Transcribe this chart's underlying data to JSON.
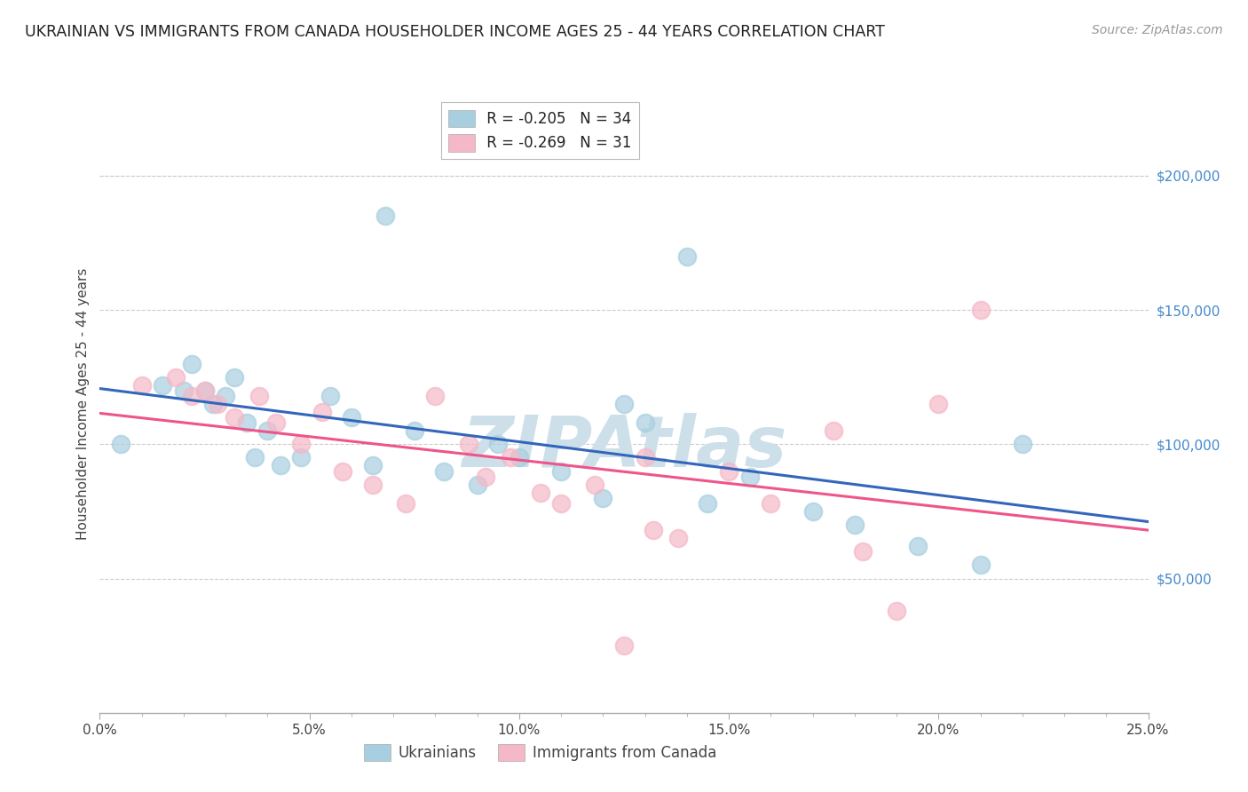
{
  "title": "UKRAINIAN VS IMMIGRANTS FROM CANADA HOUSEHOLDER INCOME AGES 25 - 44 YEARS CORRELATION CHART",
  "source": "Source: ZipAtlas.com",
  "ylabel": "Householder Income Ages 25 - 44 years",
  "xlim": [
    0.0,
    0.25
  ],
  "ylim": [
    0,
    230000
  ],
  "xtick_vals": [
    0.0,
    0.05,
    0.1,
    0.15,
    0.2,
    0.25
  ],
  "xtick_labels": [
    "0.0%",
    "5.0%",
    "10.0%",
    "15.0%",
    "20.0%",
    "25.0%"
  ],
  "yticks_right": [
    50000,
    100000,
    150000,
    200000
  ],
  "ytick_labels_right": [
    "$50,000",
    "$100,000",
    "$150,000",
    "$200,000"
  ],
  "legend_blue_R": "R = -0.205",
  "legend_blue_N": "N = 34",
  "legend_pink_R": "R = -0.269",
  "legend_pink_N": "N = 31",
  "legend_label_blue": "Ukrainians",
  "legend_label_pink": "Immigrants from Canada",
  "blue_color": "#a8cfe0",
  "pink_color": "#f5b8c8",
  "line_blue_color": "#3366bb",
  "line_pink_color": "#ee5588",
  "watermark": "ZIPAtlas",
  "watermark_color": "#cde0ea",
  "background_color": "#ffffff",
  "grid_color": "#cccccc",
  "blue_x": [
    0.005,
    0.015,
    0.02,
    0.022,
    0.025,
    0.027,
    0.03,
    0.032,
    0.035,
    0.037,
    0.04,
    0.043,
    0.048,
    0.055,
    0.06,
    0.068,
    0.075,
    0.082,
    0.09,
    0.095,
    0.1,
    0.11,
    0.12,
    0.125,
    0.13,
    0.14,
    0.155,
    0.17,
    0.18,
    0.195,
    0.21,
    0.22,
    0.065,
    0.145
  ],
  "blue_y": [
    100000,
    122000,
    120000,
    130000,
    120000,
    115000,
    118000,
    125000,
    108000,
    95000,
    105000,
    92000,
    95000,
    118000,
    110000,
    185000,
    105000,
    90000,
    85000,
    100000,
    95000,
    90000,
    80000,
    115000,
    108000,
    170000,
    88000,
    75000,
    70000,
    62000,
    55000,
    100000,
    92000,
    78000
  ],
  "pink_x": [
    0.01,
    0.018,
    0.022,
    0.025,
    0.028,
    0.032,
    0.038,
    0.042,
    0.048,
    0.053,
    0.058,
    0.065,
    0.073,
    0.08,
    0.088,
    0.092,
    0.098,
    0.105,
    0.11,
    0.118,
    0.125,
    0.132,
    0.138,
    0.15,
    0.16,
    0.175,
    0.19,
    0.2,
    0.21,
    0.13,
    0.182
  ],
  "pink_y": [
    122000,
    125000,
    118000,
    120000,
    115000,
    110000,
    118000,
    108000,
    100000,
    112000,
    90000,
    85000,
    78000,
    118000,
    100000,
    88000,
    95000,
    82000,
    78000,
    85000,
    25000,
    68000,
    65000,
    90000,
    78000,
    105000,
    38000,
    115000,
    150000,
    95000,
    60000
  ]
}
